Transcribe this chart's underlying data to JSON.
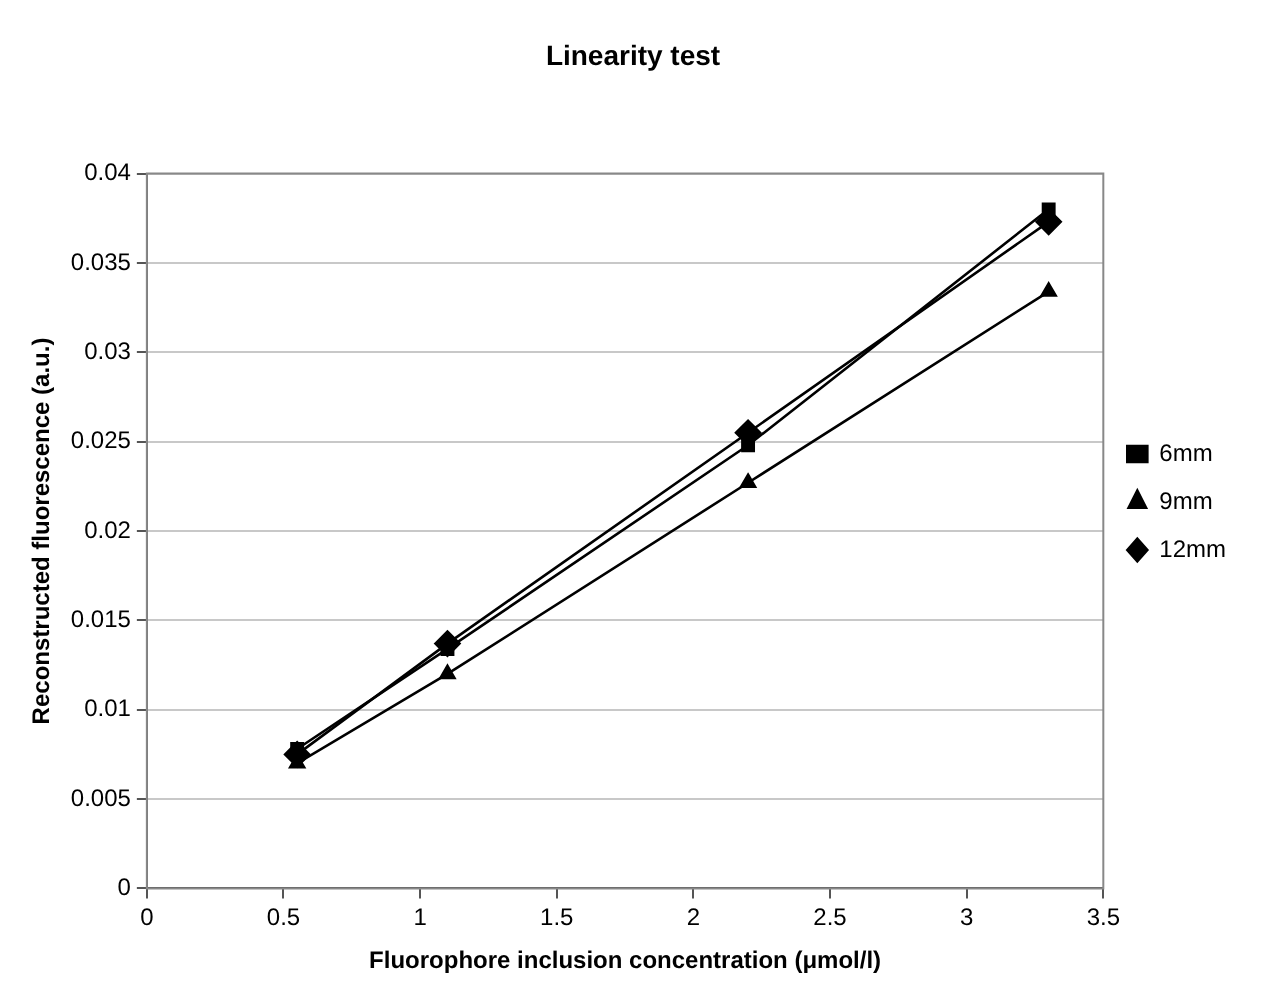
{
  "chart_data": {
    "type": "line",
    "title": "Linearity test",
    "xlabel": "Fluorophore inclusion concentration (μmol/l)",
    "ylabel": "Reconstructed fluorescence (a.u.)",
    "x": [
      0.55,
      1.1,
      2.2,
      3.3
    ],
    "series": [
      {
        "name": "6mm",
        "color": "#000000",
        "marker": "square",
        "values": [
          0.0078,
          0.0134,
          0.0248,
          0.038
        ]
      },
      {
        "name": "9mm",
        "color": "#000000",
        "marker": "triangle",
        "values": [
          0.007,
          0.012,
          0.0227,
          0.0334
        ]
      },
      {
        "name": "12mm",
        "color": "#000000",
        "marker": "diamond",
        "values": [
          0.0075,
          0.0137,
          0.0255,
          0.0373
        ]
      }
    ],
    "xlim": [
      0,
      3.5
    ],
    "xticks": [
      0,
      0.5,
      1,
      1.5,
      2,
      2.5,
      3,
      3.5
    ],
    "ylim": [
      0,
      0.04
    ],
    "yticks": [
      0,
      0.005,
      0.01,
      0.015,
      0.02,
      0.025,
      0.03,
      0.035,
      0.04
    ],
    "grid": "y",
    "legend": "right",
    "line_style": "solid"
  }
}
